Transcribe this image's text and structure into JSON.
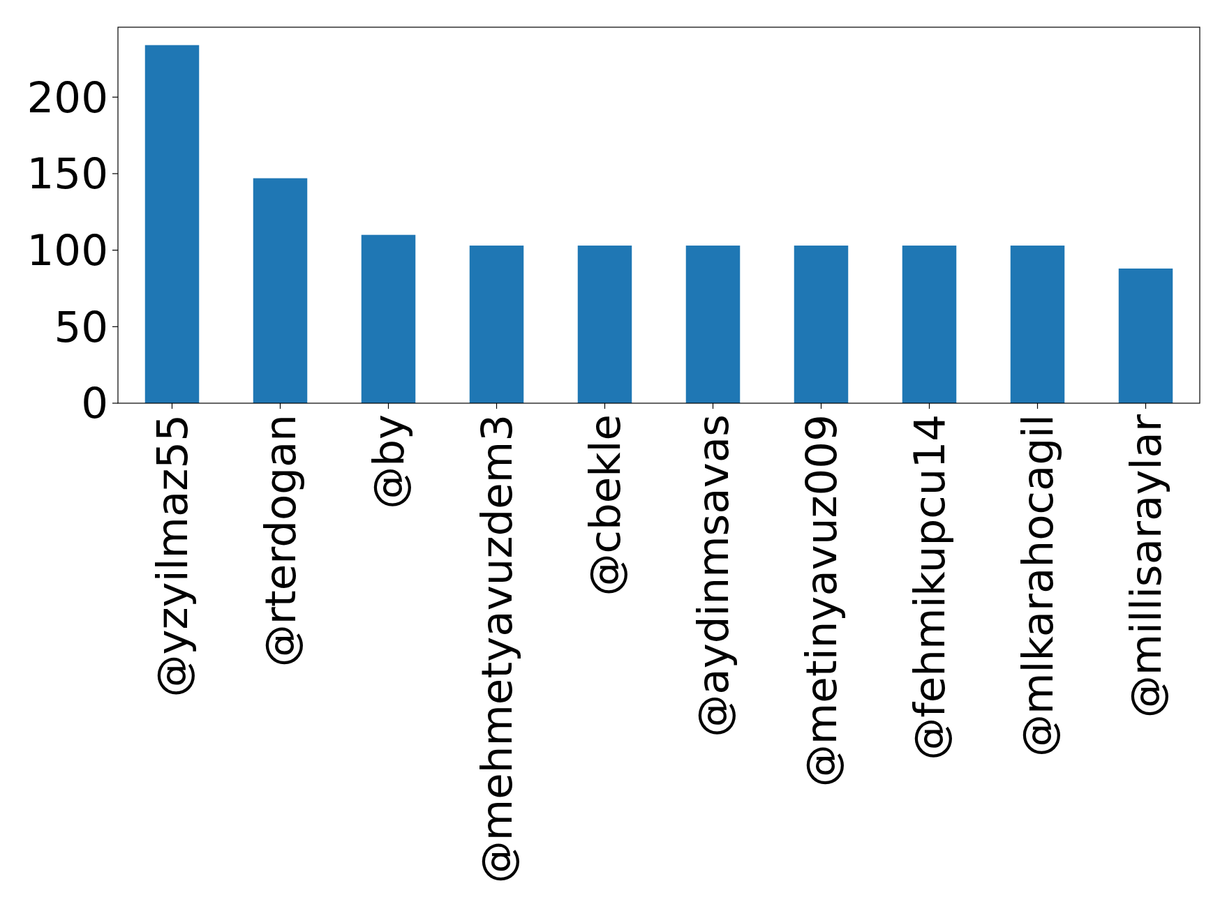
{
  "chart_data": {
    "type": "bar",
    "categories": [
      "@yzyilmaz55",
      "@rterdogan",
      "@by",
      "@mehmetyavuzdem3",
      "@cbekle",
      "@aydinmsavas",
      "@metinyavuz009",
      "@fehmikupcu14",
      "@mlkarahocagil",
      "@millisaraylar"
    ],
    "values": [
      234,
      147,
      110,
      103,
      103,
      103,
      103,
      103,
      103,
      88
    ],
    "color": "#1f77b4",
    "ylim": [
      0,
      245.7
    ],
    "yticks": [
      0,
      50,
      100,
      150,
      200
    ],
    "grid": false
  }
}
